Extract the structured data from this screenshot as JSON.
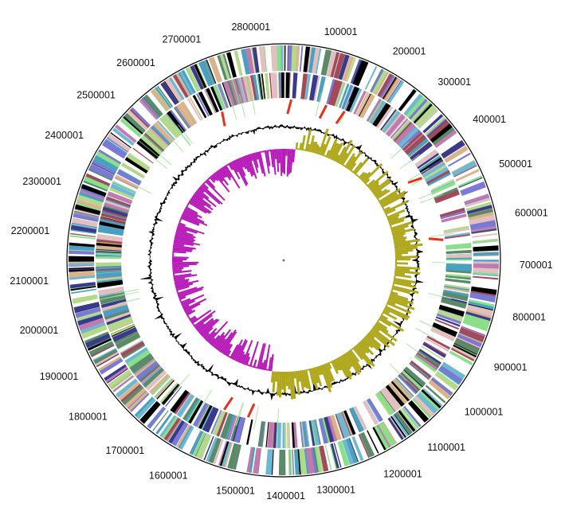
{
  "figure": {
    "type": "circular-genome-map",
    "start_angle": "top",
    "direction": "clockwise",
    "tick_labels": [
      {
        "id": "tick-100001",
        "text": "100001",
        "angle": 14.0
      },
      {
        "id": "tick-200001",
        "text": "200001",
        "angle": 27.5
      },
      {
        "id": "tick-300001",
        "text": "300001",
        "angle": 40.8
      },
      {
        "id": "tick-400001",
        "text": "400001",
        "angle": 53.3
      },
      {
        "id": "tick-500001",
        "text": "500001",
        "angle": 65.9
      },
      {
        "id": "tick-600001",
        "text": "600001",
        "angle": 78.4
      },
      {
        "id": "tick-700001",
        "text": "700001",
        "angle": 91.2
      },
      {
        "id": "tick-800001",
        "text": "800001",
        "angle": 104.0
      },
      {
        "id": "tick-900001",
        "text": "900001",
        "angle": 117.0
      },
      {
        "id": "tick-1000001",
        "text": "1000001",
        "angle": 130.0
      },
      {
        "id": "tick-1100001",
        "text": "1100001",
        "angle": 142.5
      },
      {
        "id": "tick-1200001",
        "text": "1200001",
        "angle": 155.0
      },
      {
        "id": "tick-1300001",
        "text": "1300001",
        "angle": 167.2
      },
      {
        "id": "tick-1400001",
        "text": "1400001",
        "angle": 179.5
      },
      {
        "id": "tick-1500001",
        "text": "1500001",
        "angle": 191.8
      },
      {
        "id": "tick-1600001",
        "text": "1600001",
        "angle": 204.0
      },
      {
        "id": "tick-1700001",
        "text": "1700001",
        "angle": 216.2
      },
      {
        "id": "tick-1800001",
        "text": "1800001",
        "angle": 228.4
      },
      {
        "id": "tick-1900001",
        "text": "1900001",
        "angle": 240.5
      },
      {
        "id": "tick-2000001",
        "text": "2000001",
        "angle": 252.7
      },
      {
        "id": "tick-2100001",
        "text": "2100001",
        "angle": 265.0
      },
      {
        "id": "tick-2200001",
        "text": "2200001",
        "angle": 277.2
      },
      {
        "id": "tick-2300001",
        "text": "2300001",
        "angle": 289.5
      },
      {
        "id": "tick-2400001",
        "text": "2400001",
        "angle": 302.0
      },
      {
        "id": "tick-2500001",
        "text": "2500001",
        "angle": 314.5
      },
      {
        "id": "tick-2600001",
        "text": "2600001",
        "angle": 327.0
      },
      {
        "id": "tick-2700001",
        "text": "2700001",
        "angle": 339.5
      },
      {
        "id": "tick-2800001",
        "text": "2800001",
        "angle": 352.0
      }
    ],
    "rings": [
      {
        "id": "forward-cds-ring",
        "track": "forward-strand CDS"
      },
      {
        "id": "reverse-cds-ring",
        "track": "reverse-strand CDS"
      },
      {
        "id": "rna-ring",
        "track": "tRNA / rRNA"
      },
      {
        "id": "gc-content-ring",
        "track": "GC content"
      },
      {
        "id": "gc-skew-ring",
        "track": "GC skew"
      }
    ],
    "colors": {
      "gc_skew_positive": "#b0a81c",
      "gc_skew_negative": "#b81cb8",
      "gc_content": "#000000",
      "rrna": "#e8301c",
      "trna": "#9be09b",
      "outline": "#000000",
      "cog_palette": [
        "#000000",
        "#a04a5a",
        "#7a7ad6",
        "#6fb8d4",
        "#b5d98a",
        "#d9b38a",
        "#5a8a6a",
        "#c07ab0",
        "#8ae08a",
        "#e0c0c0",
        "#3a3a8a",
        "#4aa0c0"
      ]
    },
    "rrna_positions": [
      1.5,
      14.2,
      21.0,
      336.3,
      58.0,
      81.5,
      191.6,
      200.5
    ],
    "skew_switch_angles": {
      "positive_start": 6.0,
      "positive_end": 186.0
    }
  }
}
